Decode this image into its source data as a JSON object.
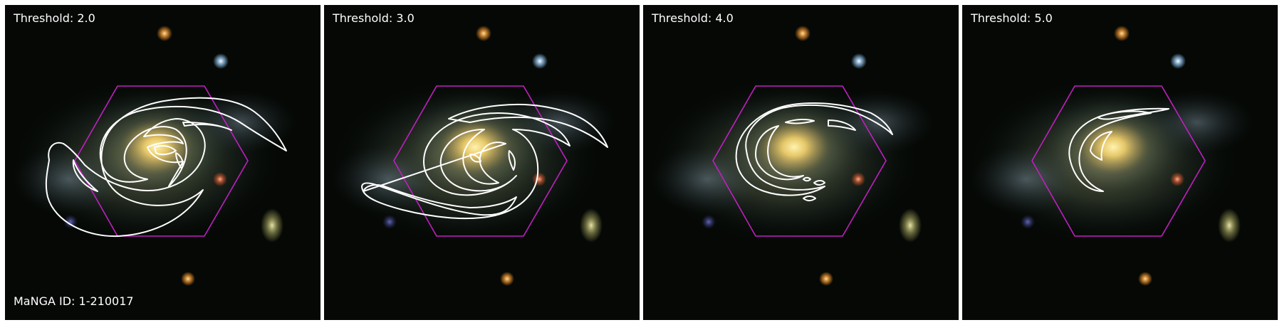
{
  "caption": {
    "manga_id": "MaNGA ID: 1-210017"
  },
  "panels": [
    {
      "threshold_label": "Threshold: 2.0",
      "threshold": 2.0
    },
    {
      "threshold_label": "Threshold: 3.0",
      "threshold": 3.0
    },
    {
      "threshold_label": "Threshold: 4.0",
      "threshold": 4.0
    },
    {
      "threshold_label": "Threshold: 5.0",
      "threshold": 5.0
    }
  ],
  "colors": {
    "background": "#050805",
    "contour": "#ffffff",
    "ifu_hexagon": "#c020c0",
    "galaxy_core": "#f3d27a"
  },
  "icons": {
    "contour": "contour-outline",
    "hexagon": "ifu-hexagon-outline"
  }
}
